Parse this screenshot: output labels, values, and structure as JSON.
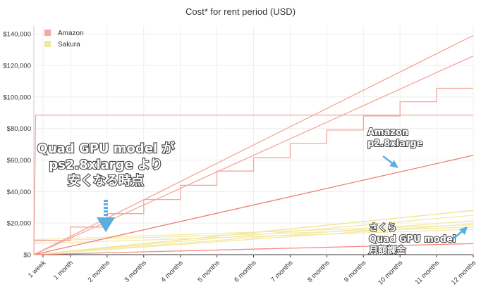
{
  "chart_data": {
    "type": "line",
    "title": "Cost* for rent period (USD)",
    "xlabel": "",
    "ylabel": "",
    "categories": [
      "1 week",
      "1 month",
      "2 months",
      "3 months",
      "4 months",
      "5 months",
      "6 months",
      "7 months",
      "8 months",
      "9 months",
      "10 months",
      "11 months",
      "12 months"
    ],
    "x_months": [
      0.25,
      1,
      2,
      3,
      4,
      5,
      6,
      7,
      8,
      9,
      10,
      11,
      12
    ],
    "yticks": [
      "$0",
      "$20,000",
      "$40,000",
      "$60,000",
      "$80,000",
      "$100,000",
      "$120,000",
      "$140,000"
    ],
    "ylim": [
      0,
      145000
    ],
    "grid": true,
    "legend_position": "top-left",
    "legend": [
      {
        "name": "Amazon",
        "color": "#f4a9a0"
      },
      {
        "name": "Sakura",
        "color": "#f0e79c"
      }
    ],
    "series": [
      {
        "group": "Amazon",
        "color": "#f5a59c",
        "x": [
          0,
          12
        ],
        "y": [
          0,
          139000
        ]
      },
      {
        "group": "Amazon",
        "color": "#f5a59c",
        "x": [
          0,
          12
        ],
        "y": [
          0,
          126000
        ]
      },
      {
        "group": "Amazon",
        "color": "#f07f72",
        "x": [
          0,
          12
        ],
        "y": [
          0,
          63000
        ]
      },
      {
        "group": "Amazon",
        "color": "#f28a80",
        "x": [
          0,
          12
        ],
        "y": [
          0,
          7000
        ]
      },
      {
        "group": "Amazon",
        "color": "#f5a59c",
        "x": [
          0,
          0.05,
          12
        ],
        "y": [
          0,
          88500,
          88500
        ]
      },
      {
        "group": "Amazon",
        "color": "#f5a59c",
        "step": true,
        "x": [
          0,
          1,
          2,
          3,
          4,
          5,
          6,
          7,
          8,
          9,
          10,
          11,
          12
        ],
        "y": [
          9000,
          17500,
          26000,
          35000,
          44000,
          53000,
          61500,
          70500,
          79000,
          88000,
          97000,
          105500,
          105500
        ]
      },
      {
        "group": "Sakura",
        "color": "#efe38c",
        "x": [
          0,
          12
        ],
        "y": [
          0,
          28000
        ]
      },
      {
        "group": "Sakura",
        "color": "#f3eaa8",
        "x": [
          0,
          12
        ],
        "y": [
          0,
          25000
        ]
      },
      {
        "group": "Sakura",
        "color": "#f3eaa8",
        "x": [
          0,
          12
        ],
        "y": [
          0,
          21500
        ]
      },
      {
        "group": "Sakura",
        "color": "#f3eaa8",
        "x": [
          0,
          12
        ],
        "y": [
          0,
          19500
        ]
      },
      {
        "group": "Sakura",
        "color": "#f3eaa8",
        "x": [
          0,
          12
        ],
        "y": [
          9500,
          19000
        ]
      },
      {
        "group": "Sakura",
        "color": "#f3eaa8",
        "x": [
          0,
          12
        ],
        "y": [
          8500,
          17500
        ]
      },
      {
        "group": "Sakura",
        "color": "#f3eaa8",
        "x": [
          0,
          12
        ],
        "y": [
          7000,
          16000
        ]
      }
    ],
    "annotations": [
      {
        "text": [
          "Quad GPU model が",
          "ps2.8xlarge より",
          "安くなる時点"
        ]
      },
      {
        "text": [
          "Amazon",
          "p2.8xlarge"
        ]
      },
      {
        "text": [
          "さくら",
          "Quad GPU model",
          "月額課金"
        ]
      }
    ]
  },
  "colors": {
    "arrow": "#5aaee0",
    "grid": "#eeeeee",
    "axis": "#333333"
  }
}
